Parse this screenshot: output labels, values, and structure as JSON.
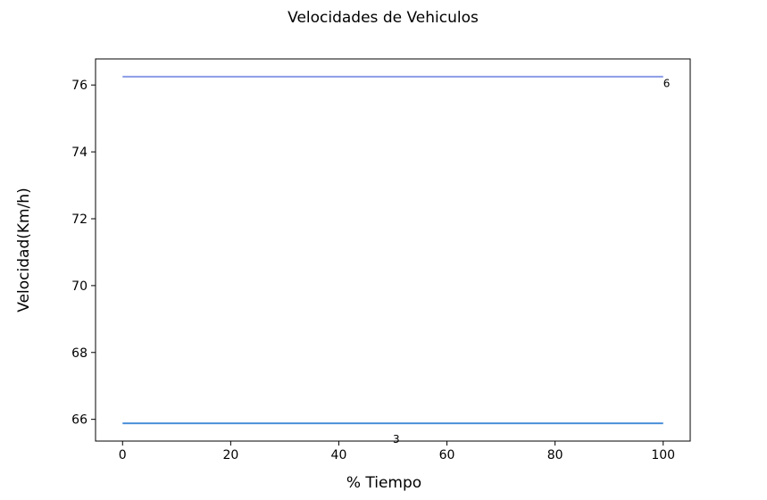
{
  "chart_data": {
    "type": "line",
    "title": "Velocidades de Vehiculos",
    "xlabel": "% Tiempo",
    "ylabel": "Velocidad(Km/h)",
    "xlim": [
      -5,
      105
    ],
    "ylim": [
      65.35,
      76.78
    ],
    "xticks": [
      0,
      20,
      40,
      60,
      80,
      100
    ],
    "yticks": [
      66,
      68,
      70,
      72,
      74,
      76
    ],
    "grid": false,
    "series": [
      {
        "x": [
          0,
          100
        ],
        "y": [
          76.25,
          76.25
        ],
        "color": "#8b9be6",
        "label_text": "6",
        "label_at": [
          100,
          76.05
        ]
      },
      {
        "x": [
          0,
          100
        ],
        "y": [
          65.88,
          65.88
        ],
        "color": "#4a8fd8",
        "label_text": "3",
        "label_at": [
          50,
          65.4
        ]
      }
    ]
  }
}
